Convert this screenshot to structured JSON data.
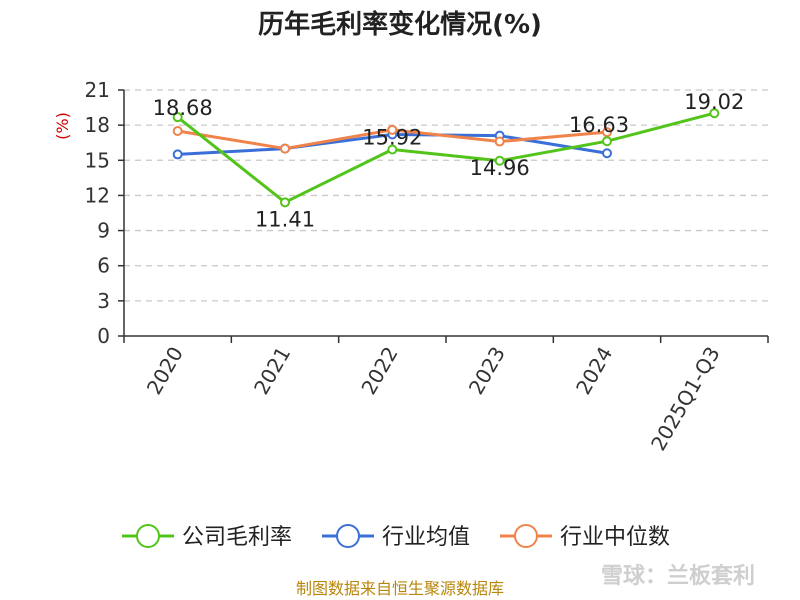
{
  "chart_data": {
    "type": "line",
    "title": "历年毛利率变化情况(%)",
    "ylabel": "(%)",
    "xlabel": "",
    "categories": [
      "2020",
      "2021",
      "2022",
      "2023",
      "2024",
      "2025Q1-Q3"
    ],
    "yticks": [
      0,
      3,
      6,
      9,
      12,
      15,
      18,
      21
    ],
    "ylim": [
      0,
      21
    ],
    "grid": true,
    "legend_position": "bottom",
    "series": [
      {
        "name": "公司毛利率",
        "color": "#52c41a",
        "values": [
          18.68,
          11.41,
          15.92,
          14.96,
          16.63,
          19.02
        ],
        "labels": [
          "18.68",
          "11.41",
          "15.92",
          "14.96",
          "16.63",
          "19.02"
        ]
      },
      {
        "name": "行业均值",
        "color": "#3a6fd8",
        "values": [
          15.5,
          16.0,
          17.2,
          17.1,
          15.6,
          null
        ]
      },
      {
        "name": "行业中位数",
        "color": "#f0834a",
        "values": [
          17.5,
          16.0,
          17.6,
          16.6,
          17.4,
          null
        ]
      }
    ]
  },
  "footer": {
    "source": "制图数据来自恒生聚源数据库",
    "watermark": "雪球：兰板套利"
  }
}
